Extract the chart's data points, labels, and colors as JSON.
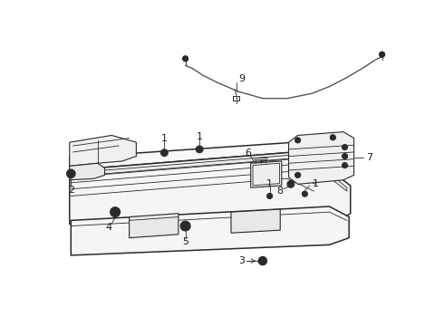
{
  "background_color": "#ffffff",
  "line_color": "#2a2a2a",
  "text_color": "#1a1a1a",
  "figsize": [
    4.9,
    3.6
  ],
  "dpi": 100,
  "wire_color": "#555555"
}
